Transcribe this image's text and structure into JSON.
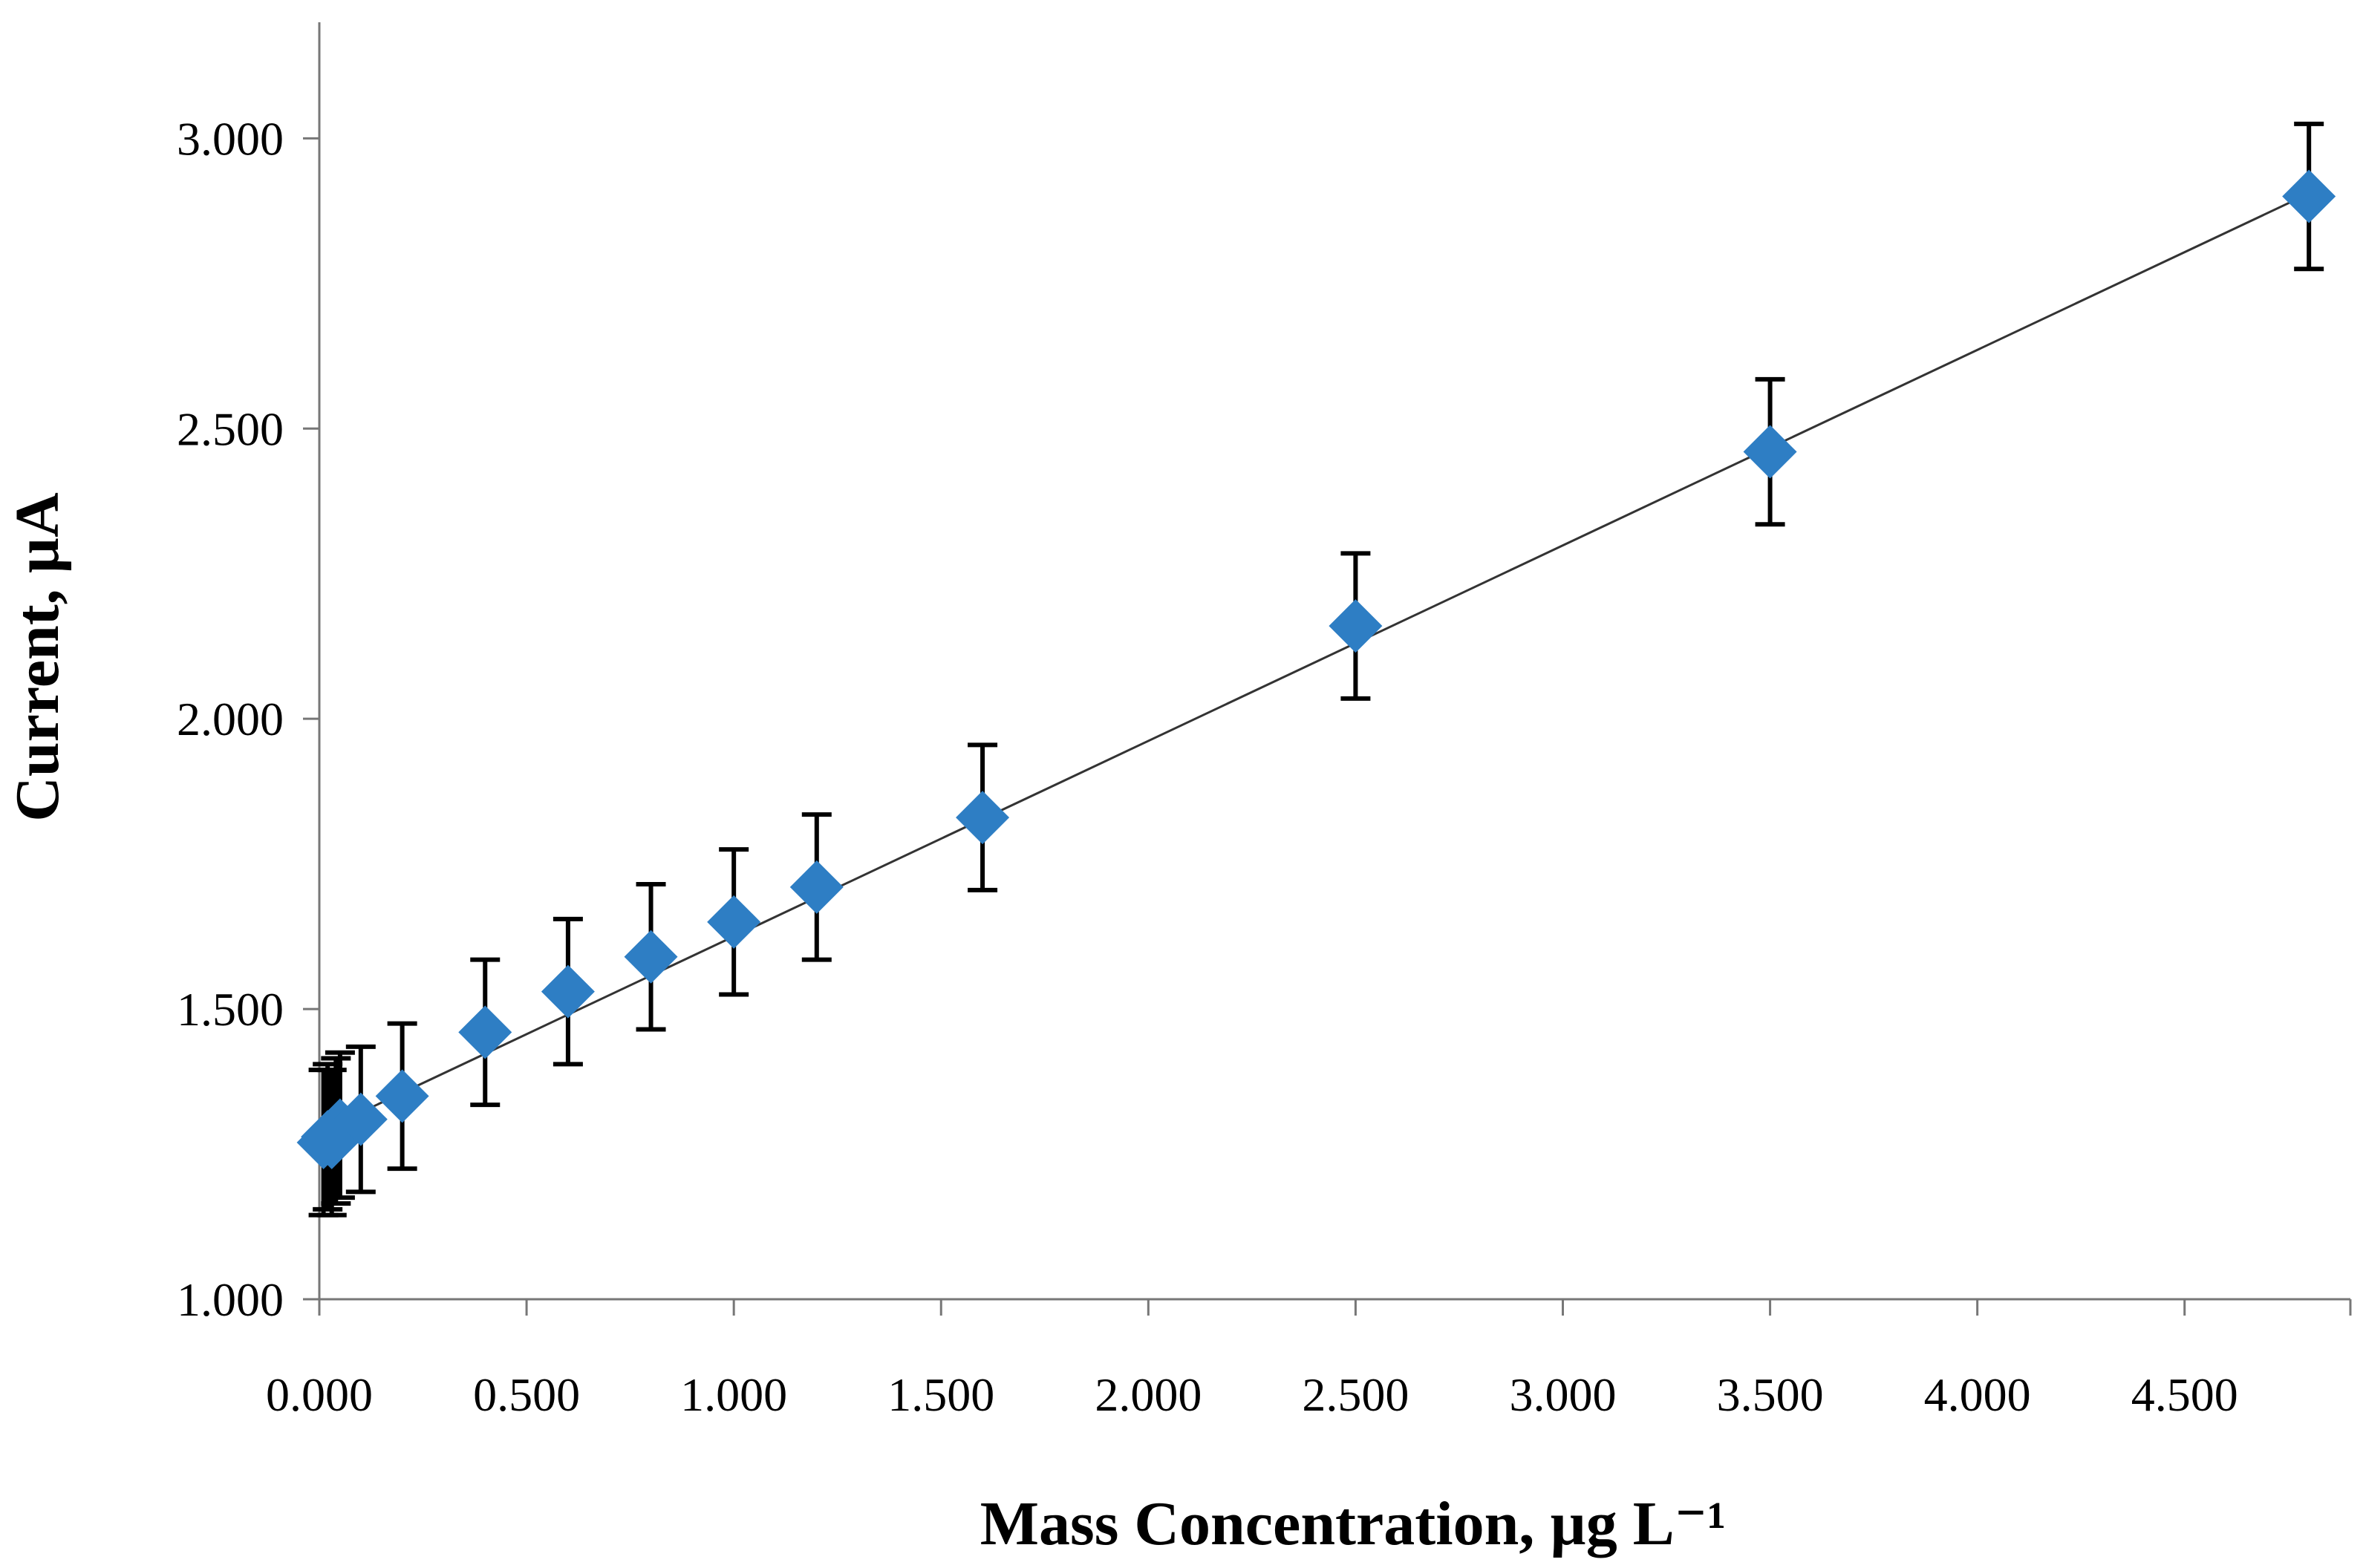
{
  "chart_data": {
    "type": "scatter",
    "title": "",
    "xlabel": "Mass Concentration, µg L⁻¹",
    "ylabel": "Current, µA",
    "xlim": [
      0,
      4.9
    ],
    "ylim": [
      1.0,
      3.2
    ],
    "x_ticks": [
      0,
      0.5,
      1.0,
      1.5,
      2.0,
      2.5,
      3.0,
      3.5,
      4.0,
      4.5
    ],
    "x_tick_labels": [
      "0.000",
      "0.500",
      "1.000",
      "1.500",
      "2.000",
      "2.500",
      "3.000",
      "3.500",
      "4.000",
      "4.500"
    ],
    "y_ticks": [
      1.0,
      1.5,
      2.0,
      2.5,
      3.0
    ],
    "y_tick_labels": [
      "1.000",
      "1.500",
      "2.000",
      "2.500",
      "3.000"
    ],
    "grid": false,
    "marker_color": "#2E7EC4",
    "errorbar_color": "#000000",
    "trendline_color": "#333333",
    "series": [
      {
        "name": "Current",
        "x": [
          0.01,
          0.02,
          0.03,
          0.04,
          0.05,
          0.1,
          0.2,
          0.4,
          0.6,
          0.8,
          1.0,
          1.2,
          1.6,
          2.5,
          3.5,
          4.8
        ],
        "y": [
          1.27,
          1.28,
          1.27,
          1.29,
          1.3,
          1.31,
          1.35,
          1.46,
          1.53,
          1.59,
          1.65,
          1.71,
          1.83,
          2.16,
          2.46,
          2.9
        ],
        "error": [
          0.125,
          0.125,
          0.125,
          0.125,
          0.125,
          0.125,
          0.125,
          0.125,
          0.125,
          0.125,
          0.125,
          0.125,
          0.125,
          0.125,
          0.125,
          0.125
        ]
      }
    ],
    "trendline": {
      "type": "linear",
      "x_range": [
        0.02,
        4.8
      ],
      "y_range": [
        1.295,
        2.905
      ]
    }
  }
}
